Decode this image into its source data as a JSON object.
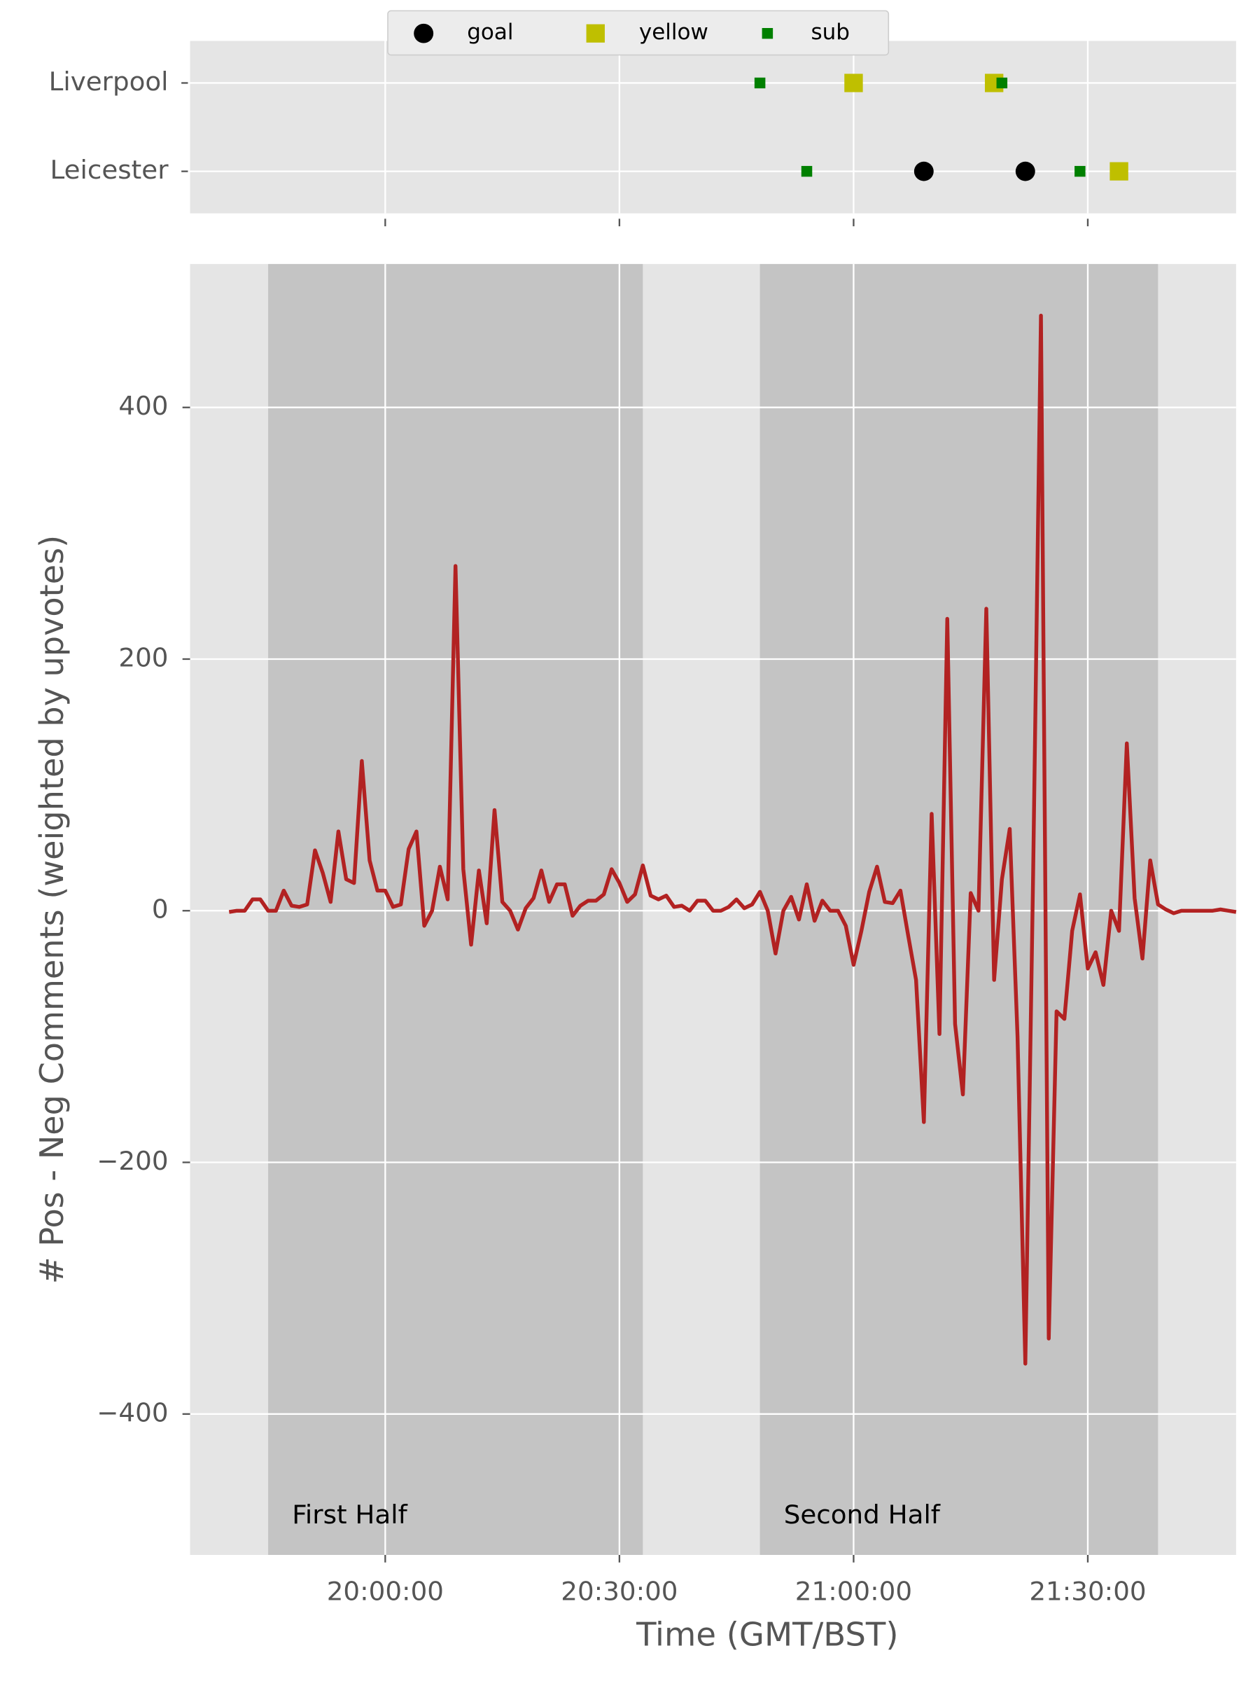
{
  "chart_data": [
    {
      "type": "scatter",
      "categories": [
        "Liverpool",
        "Leicester"
      ],
      "xlim": [
        "19:35:00",
        "21:49:00"
      ],
      "xticks": [
        "20:00:00",
        "20:30:00",
        "21:00:00",
        "21:30:00"
      ],
      "grid": true,
      "legend": "top",
      "series": [
        {
          "name": "goal",
          "color": "#000000",
          "marker": "circle",
          "x": [
            "21:09:00",
            "21:22:00"
          ],
          "y": [
            "Leicester",
            "Leicester"
          ]
        },
        {
          "name": "yellow",
          "color": "#bfbf00",
          "marker": "square",
          "x": [
            "21:00:00",
            "21:18:00",
            "21:34:00"
          ],
          "y": [
            "Liverpool",
            "Liverpool",
            "Leicester"
          ]
        },
        {
          "name": "sub",
          "color": "#008000",
          "marker": "small-square",
          "x": [
            "20:48:00",
            "21:19:00",
            "20:54:00",
            "21:29:00"
          ],
          "y": [
            "Liverpool",
            "Liverpool",
            "Leicester",
            "Leicester"
          ]
        }
      ]
    },
    {
      "type": "line",
      "y_label": "# Pos - Neg Comments (weighted by upvotes)",
      "x_label": "Time (GMT/BST)",
      "xlim": [
        "19:35:00",
        "21:49:00"
      ],
      "xticks": [
        "20:00:00",
        "20:30:00",
        "21:00:00",
        "21:30:00"
      ],
      "ylim": [
        -512,
        514
      ],
      "yticks": [
        {
          "value": -400,
          "label": "−400"
        },
        {
          "value": -200,
          "label": "−200"
        },
        0,
        200,
        400
      ],
      "grid": true,
      "spans": [
        {
          "label": "First Half",
          "start": "19:45:00",
          "end": "20:33:00",
          "color": "#c4c4c4"
        },
        {
          "label": "Second Half",
          "start": "20:48:00",
          "end": "21:39:00",
          "color": "#c4c4c4"
        }
      ],
      "x": [
        "19:40:00",
        "19:41:00",
        "19:42:00",
        "19:43:00",
        "19:44:00",
        "19:45:00",
        "19:46:00",
        "19:47:00",
        "19:48:00",
        "19:49:00",
        "19:50:00",
        "19:51:00",
        "19:52:00",
        "19:53:00",
        "19:54:00",
        "19:55:00",
        "19:56:00",
        "19:57:00",
        "19:58:00",
        "19:59:00",
        "20:00:00",
        "20:01:00",
        "20:02:00",
        "20:03:00",
        "20:04:00",
        "20:05:00",
        "20:06:00",
        "20:07:00",
        "20:08:00",
        "20:09:00",
        "20:10:00",
        "20:11:00",
        "20:12:00",
        "20:13:00",
        "20:14:00",
        "20:15:00",
        "20:16:00",
        "20:17:00",
        "20:18:00",
        "20:19:00",
        "20:20:00",
        "20:21:00",
        "20:22:00",
        "20:23:00",
        "20:24:00",
        "20:25:00",
        "20:26:00",
        "20:27:00",
        "20:28:00",
        "20:29:00",
        "20:30:00",
        "20:31:00",
        "20:32:00",
        "20:33:00",
        "20:34:00",
        "20:35:00",
        "20:36:00",
        "20:37:00",
        "20:38:00",
        "20:39:00",
        "20:40:00",
        "20:41:00",
        "20:42:00",
        "20:43:00",
        "20:44:00",
        "20:45:00",
        "20:46:00",
        "20:47:00",
        "20:48:00",
        "20:49:00",
        "20:50:00",
        "20:51:00",
        "20:52:00",
        "20:53:00",
        "20:54:00",
        "20:55:00",
        "20:56:00",
        "20:57:00",
        "20:58:00",
        "20:59:00",
        "21:00:00",
        "21:01:00",
        "21:02:00",
        "21:03:00",
        "21:04:00",
        "21:05:00",
        "21:06:00",
        "21:07:00",
        "21:08:00",
        "21:09:00",
        "21:10:00",
        "21:11:00",
        "21:12:00",
        "21:13:00",
        "21:14:00",
        "21:15:00",
        "21:16:00",
        "21:17:00",
        "21:18:00",
        "21:19:00",
        "21:20:00",
        "21:21:00",
        "21:22:00",
        "21:23:00",
        "21:24:00",
        "21:25:00",
        "21:26:00",
        "21:27:00",
        "21:28:00",
        "21:29:00",
        "21:30:00",
        "21:31:00",
        "21:32:00",
        "21:33:00",
        "21:34:00",
        "21:35:00",
        "21:36:00",
        "21:37:00",
        "21:38:00",
        "21:39:00",
        "21:40:00",
        "21:41:00",
        "21:42:00",
        "21:43:00",
        "21:44:00",
        "21:45:00",
        "21:46:00",
        "21:47:00",
        "21:48:00",
        "21:49:00"
      ],
      "values": [
        -1,
        0,
        0,
        9,
        9,
        0,
        0,
        16,
        4,
        3,
        5,
        48,
        30,
        7,
        63,
        25,
        22,
        119,
        40,
        16,
        16,
        3,
        5,
        49,
        63,
        -12,
        0,
        35,
        9,
        274,
        33,
        -27,
        32,
        -10,
        80,
        7,
        0,
        -15,
        2,
        10,
        32,
        7,
        21,
        21,
        -4,
        4,
        8,
        8,
        13,
        33,
        22,
        7,
        13,
        36,
        12,
        9,
        12,
        3,
        4,
        0,
        8,
        8,
        0,
        0,
        3,
        9,
        2,
        5,
        15,
        0,
        -34,
        0,
        11,
        -7,
        21,
        -8,
        8,
        0,
        0,
        -12,
        -43,
        -16,
        15,
        35,
        7,
        6,
        16,
        -20,
        -55,
        -168,
        77,
        -98,
        232,
        -90,
        -146,
        14,
        0,
        240,
        -55,
        25,
        65,
        -100,
        -360,
        30,
        473,
        -340,
        -80,
        -86,
        -16,
        13,
        -46,
        -33,
        -59,
        0,
        -16,
        133,
        10,
        -38,
        40,
        5,
        1,
        -2,
        0,
        0,
        0,
        0,
        0,
        1,
        0,
        -1
      ],
      "color": "#b22222"
    }
  ]
}
